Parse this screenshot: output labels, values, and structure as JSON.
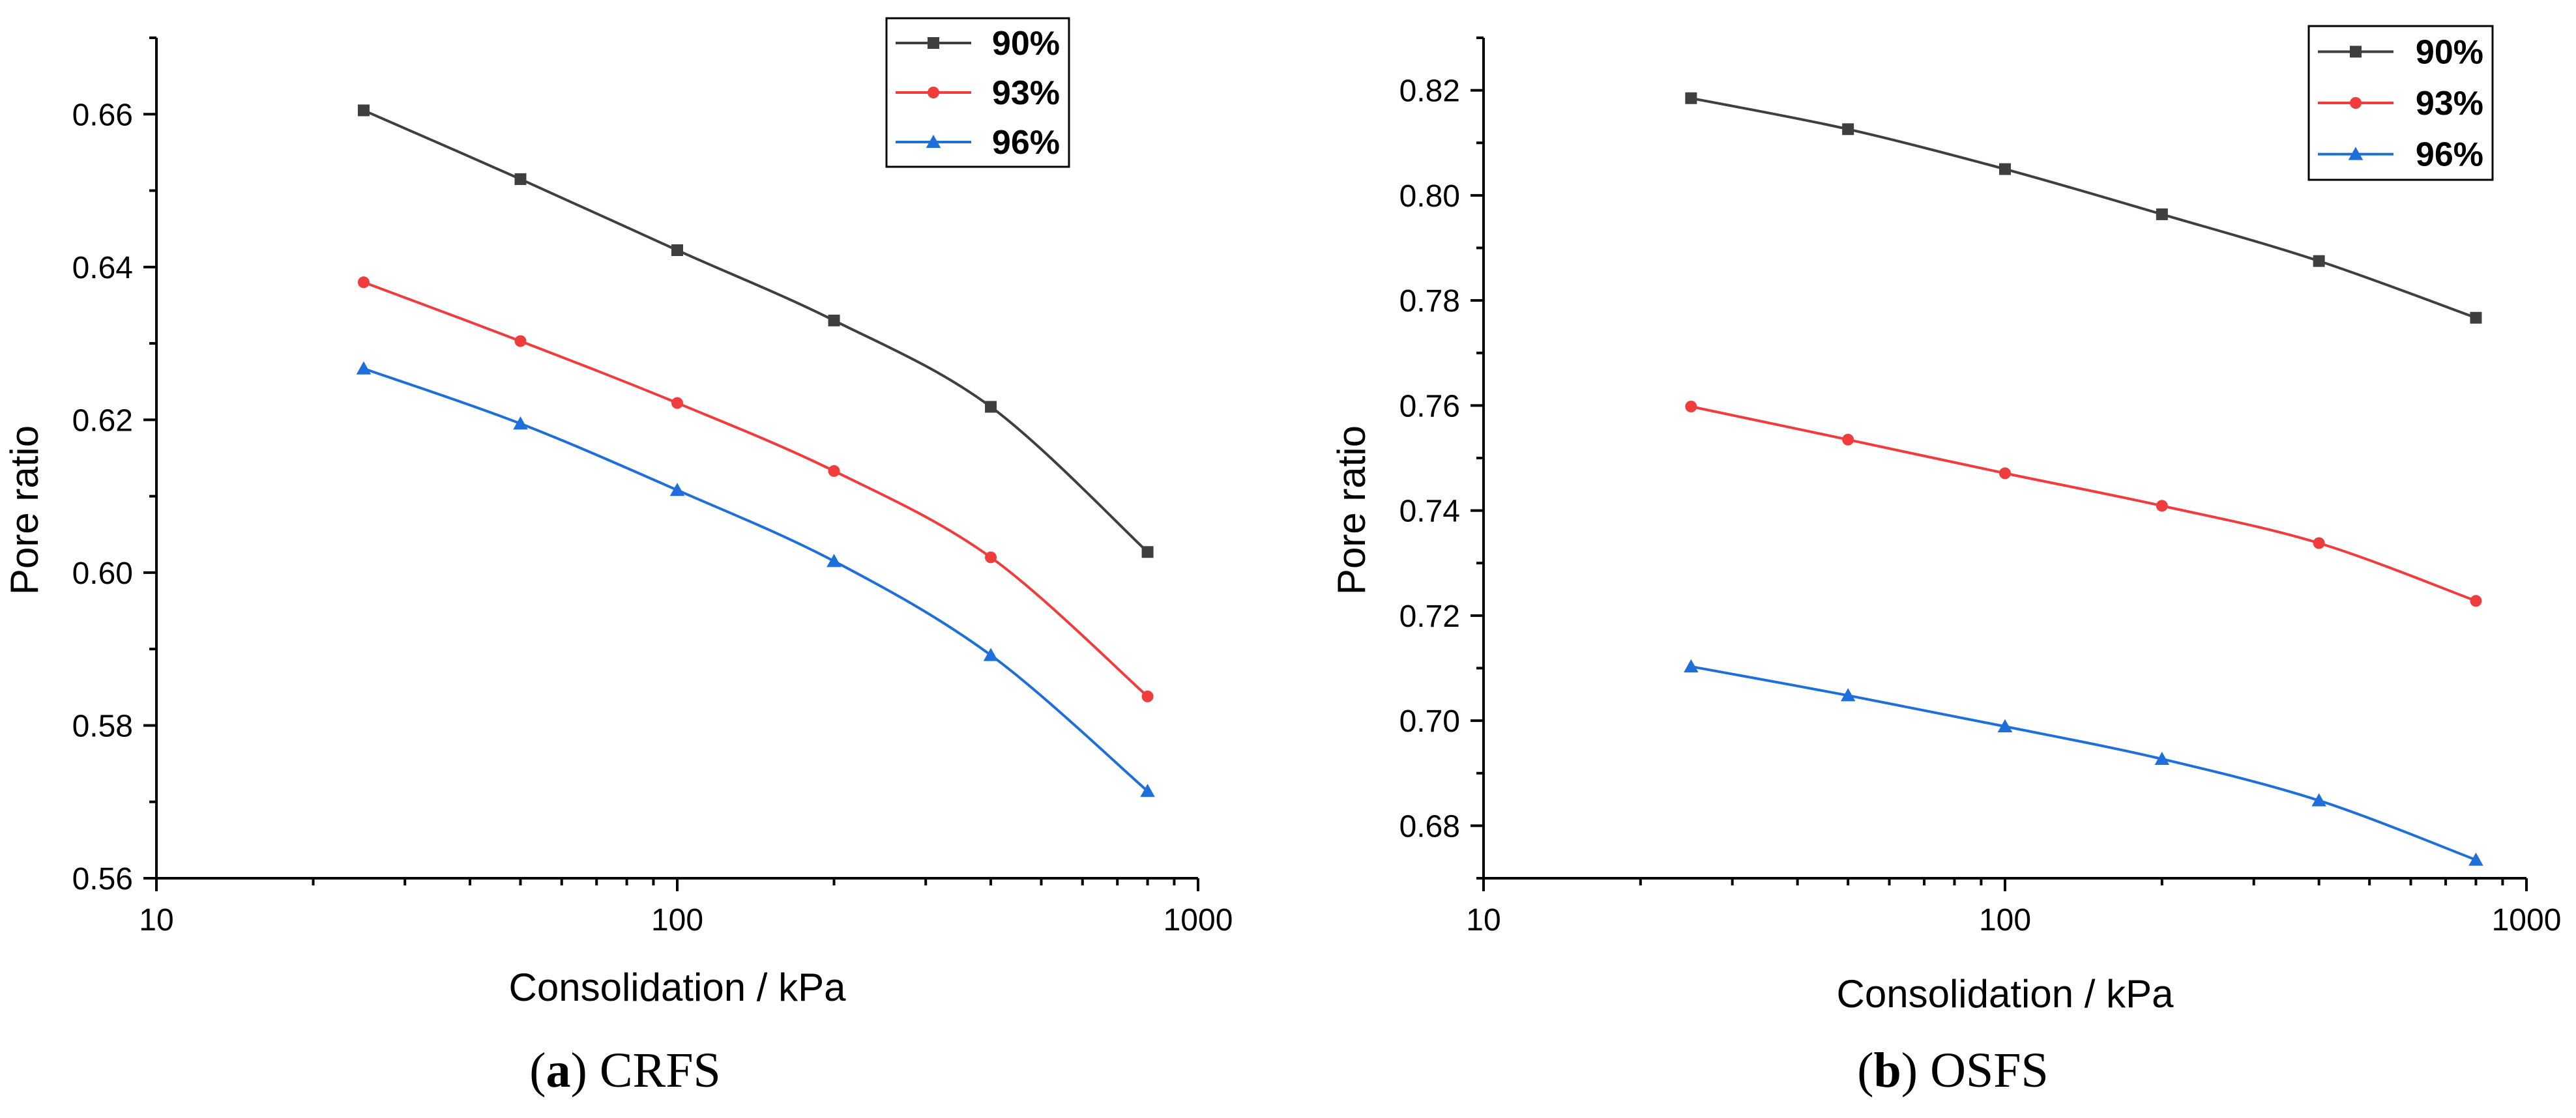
{
  "chart_data": [
    {
      "type": "line",
      "panel": "a",
      "caption_letter": "a",
      "caption_text": "CRFS",
      "xlabel": "Consolidation / kPa",
      "ylabel": "Pore ratio",
      "xscale": "log",
      "xlim": [
        10,
        1000
      ],
      "ylim": [
        0.56,
        0.67
      ],
      "xticks": [
        10,
        100,
        1000
      ],
      "xtick_labels": [
        "10",
        "100",
        "1000"
      ],
      "yticks": [
        0.56,
        0.58,
        0.6,
        0.62,
        0.64,
        0.66
      ],
      "ytick_labels": [
        "0.56",
        "0.58",
        "0.60",
        "0.62",
        "0.64",
        "0.66"
      ],
      "legend_position": "top-right",
      "x": [
        25,
        50,
        100,
        200,
        400,
        800
      ],
      "series": [
        {
          "name": "90%",
          "color": "#3f3f3f",
          "marker": "square",
          "values": [
            0.6605,
            0.6515,
            0.6422,
            0.633,
            0.6217,
            0.6027
          ]
        },
        {
          "name": "93%",
          "color": "#f03c3c",
          "marker": "circle",
          "values": [
            0.638,
            0.6303,
            0.6222,
            0.6133,
            0.602,
            0.5838
          ]
        },
        {
          "name": "96%",
          "color": "#1e6fd9",
          "marker": "triangle",
          "values": [
            0.6267,
            0.6195,
            0.6108,
            0.6015,
            0.5892,
            0.5714
          ]
        }
      ]
    },
    {
      "type": "line",
      "panel": "b",
      "caption_letter": "b",
      "caption_text": "OSFS",
      "xlabel": "Consolidation / kPa",
      "ylabel": "Pore ratio",
      "xscale": "log",
      "xlim": [
        10,
        1000
      ],
      "ylim": [
        0.67,
        0.83
      ],
      "xticks": [
        10,
        100,
        1000
      ],
      "xtick_labels": [
        "10",
        "100",
        "1000"
      ],
      "yticks": [
        0.68,
        0.7,
        0.72,
        0.74,
        0.76,
        0.78,
        0.8,
        0.82
      ],
      "ytick_labels": [
        "0.68",
        "0.70",
        "0.72",
        "0.74",
        "0.76",
        "0.78",
        "0.80",
        "0.82"
      ],
      "legend_position": "top-right",
      "x": [
        25,
        50,
        100,
        200,
        400,
        800
      ],
      "series": [
        {
          "name": "90%",
          "color": "#3f3f3f",
          "marker": "square",
          "values": [
            0.8185,
            0.8126,
            0.805,
            0.7964,
            0.7875,
            0.7767
          ]
        },
        {
          "name": "93%",
          "color": "#f03c3c",
          "marker": "circle",
          "values": [
            0.7598,
            0.7535,
            0.7471,
            0.7409,
            0.7338,
            0.7228
          ]
        },
        {
          "name": "96%",
          "color": "#1e6fd9",
          "marker": "triangle",
          "values": [
            0.7103,
            0.7048,
            0.6989,
            0.6927,
            0.6848,
            0.6735
          ]
        }
      ]
    }
  ]
}
